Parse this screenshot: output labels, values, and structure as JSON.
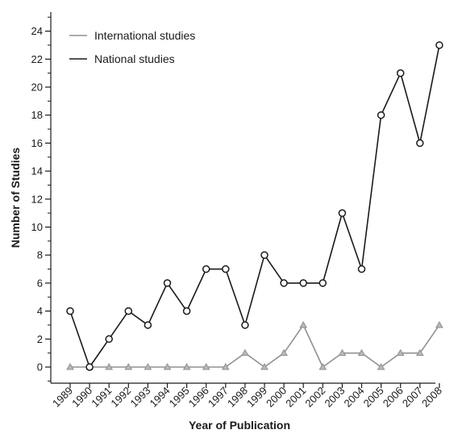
{
  "chart_data": {
    "type": "line",
    "xlabel": "Year of Publication",
    "ylabel": "Number of Studies",
    "ylim": [
      -1,
      25
    ],
    "y_ticks": [
      0,
      2,
      4,
      6,
      8,
      10,
      12,
      14,
      16,
      18,
      20,
      22,
      24
    ],
    "categories": [
      "1989",
      "1990",
      "1991",
      "1992",
      "1993",
      "1994",
      "1995",
      "1996",
      "1997",
      "1998",
      "1999",
      "2000",
      "2001",
      "2002",
      "2003",
      "2004",
      "2005",
      "2006",
      "2007",
      "2008"
    ],
    "legend_position": "top-left",
    "grid": false,
    "series": [
      {
        "name": "International studies",
        "color": "#909090",
        "marker": "triangle",
        "values": [
          0,
          0,
          0,
          0,
          0,
          0,
          0,
          0,
          0,
          1,
          0,
          1,
          3,
          0,
          1,
          1,
          0,
          1,
          1,
          3
        ]
      },
      {
        "name": "National studies",
        "color": "#1a1a1a",
        "marker": "circle",
        "values": [
          4,
          0,
          2,
          4,
          3,
          6,
          4,
          7,
          7,
          3,
          8,
          6,
          6,
          6,
          11,
          7,
          18,
          21,
          16,
          23
        ]
      }
    ]
  }
}
